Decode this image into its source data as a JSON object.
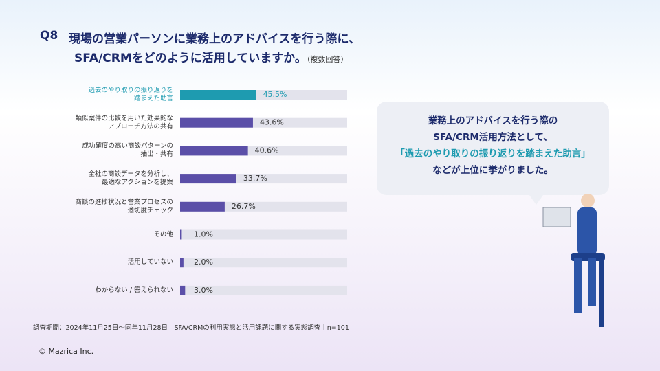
{
  "chart_data": {
    "type": "hbar",
    "title": {
      "number": "Q8",
      "lines": [
        "現場の営業パーソンに業務上のアドバイスを行う際に、",
        "SFA/CRMをどのように活用していますか。"
      ],
      "note": "（複数回答）"
    },
    "categories": [
      "過去のやり取りの振り返りを\n踏まえた助言",
      "類似案件の比較を用いた効果的な\nアプローチ方法の共有",
      "成功確度の高い商談パターンの\n抽出・共有",
      "全社の商談データを分析し、\n最適なアクションを提案",
      "商談の進捗状況と営業プロセスの\n適切度チェック",
      "その他",
      "活用していない",
      "わからない / 答えられない"
    ],
    "values": [
      45.5,
      43.6,
      40.6,
      33.7,
      26.7,
      1.0,
      2.0,
      3.0
    ],
    "value_labels": [
      "45.5%",
      "43.6%",
      "40.6%",
      "33.7%",
      "26.7%",
      "1.0%",
      "2.0%",
      "3.0%"
    ],
    "colors": [
      "#1e9bb0",
      "#5b4fa8",
      "#5b4fa8",
      "#5b4fa8",
      "#5b4fa8",
      "#5b4fa8",
      "#5b4fa8",
      "#5b4fa8"
    ],
    "label_colors": [
      "#1e9bb0",
      "#333333",
      "#333333",
      "#333333",
      "#333333",
      "#333333",
      "#333333",
      "#333333"
    ],
    "track_color": "#e3e3ec",
    "xlim": [
      0,
      100
    ]
  },
  "callout": {
    "lines": [
      "業務上のアドバイスを行う際の",
      "SFA/CRM活用方法として、",
      "「過去のやり取りの振り返りを踏まえた助言」",
      "などが上位に挙がりました。"
    ]
  },
  "footnote": "調査期間：2024年11月25日～同年11月28日　SFA/CRMの利用実態と活用課題に関する実態調査｜n=101",
  "copyright": "© Mazrica Inc."
}
